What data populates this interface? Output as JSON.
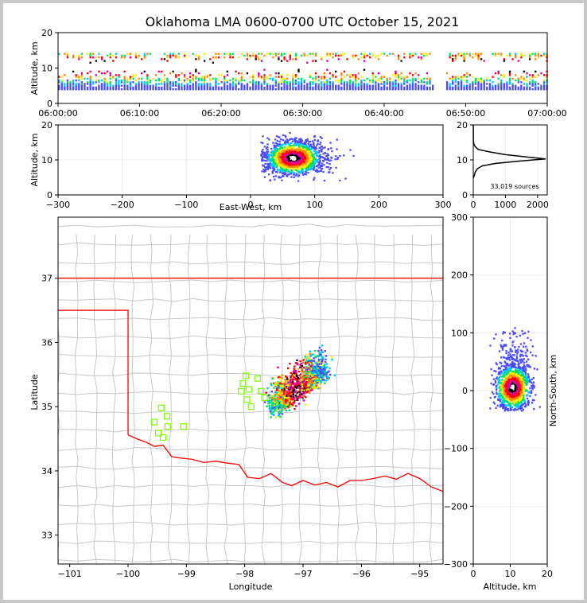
{
  "chart_data": {
    "title": "Oklahoma LMA 0600-0700 UTC October 15, 2021",
    "panels": [
      {
        "type": "scatter",
        "name": "time-altitude",
        "xlabel": "",
        "ylabel": "Altitude, km",
        "xlim": [
          "06:00:00",
          "07:00:00"
        ],
        "ylim": [
          0,
          20
        ],
        "x_ticks": [
          "06:00:00",
          "06:10:00",
          "06:20:00",
          "06:30:00",
          "06:40:00",
          "06:50:00",
          "07:00:00"
        ],
        "y_ticks": [
          "0",
          "10",
          "20"
        ],
        "gaps_minutes": [
          [
            46,
            47.3
          ]
        ],
        "altitude_band_km": [
          4,
          14
        ],
        "peak_altitude_km": 10.5
      },
      {
        "type": "scatter",
        "name": "east-west-altitude",
        "xlabel": "East-West, km",
        "ylabel": "Altitude, km",
        "xlim": [
          -300,
          300
        ],
        "ylim": [
          0,
          20
        ],
        "x_ticks": [
          "−300",
          "−200",
          "−100",
          "0",
          "100",
          "200",
          "300"
        ],
        "y_ticks": [
          "0",
          "10",
          "20"
        ],
        "cluster": {
          "x_range_km": [
            20,
            160
          ],
          "core_x_km": 65,
          "core_z_km": 10.5
        }
      },
      {
        "type": "line",
        "name": "altitude-histogram",
        "xlabel": "",
        "ylabel": "",
        "xlim": [
          0,
          2300
        ],
        "ylim": [
          0,
          20
        ],
        "x_ticks": [
          "0",
          "1000",
          "2000"
        ],
        "y_ticks": [
          "0",
          "10",
          "20"
        ],
        "annotation": "33,019 sources",
        "profile": [
          {
            "alt": 4.8,
            "count": 0
          },
          {
            "alt": 5.5,
            "count": 30
          },
          {
            "alt": 6.5,
            "count": 60
          },
          {
            "alt": 7.5,
            "count": 130
          },
          {
            "alt": 8.3,
            "count": 280
          },
          {
            "alt": 9.0,
            "count": 700
          },
          {
            "alt": 9.7,
            "count": 1500
          },
          {
            "alt": 10.3,
            "count": 2250
          },
          {
            "alt": 10.8,
            "count": 1700
          },
          {
            "alt": 11.5,
            "count": 1000
          },
          {
            "alt": 12.3,
            "count": 500
          },
          {
            "alt": 13.0,
            "count": 150
          },
          {
            "alt": 13.8,
            "count": 60
          },
          {
            "alt": 14.5,
            "count": 20
          },
          {
            "alt": 15.5,
            "count": 5
          },
          {
            "alt": 20.0,
            "count": 0
          }
        ]
      },
      {
        "type": "scatter",
        "name": "plan-view-map",
        "xlabel": "Longitude",
        "ylabel": "Latitude",
        "xlim": [
          -101.2,
          -94.6
        ],
        "ylim": [
          32.55,
          37.95
        ],
        "x_ticks": [
          "−101",
          "−100",
          "−99",
          "−98",
          "−97",
          "−96",
          "−95"
        ],
        "y_ticks": [
          "33",
          "34",
          "35",
          "36",
          "37"
        ],
        "stations": [
          {
            "lon": -99.43,
            "lat": 34.98
          },
          {
            "lon": -99.33,
            "lat": 34.85
          },
          {
            "lon": -99.55,
            "lat": 34.76
          },
          {
            "lon": -99.32,
            "lat": 34.69
          },
          {
            "lon": -99.05,
            "lat": 34.69
          },
          {
            "lon": -99.48,
            "lat": 34.59
          },
          {
            "lon": -99.4,
            "lat": 34.52
          },
          {
            "lon": -97.98,
            "lat": 35.48
          },
          {
            "lon": -97.78,
            "lat": 35.44
          },
          {
            "lon": -98.03,
            "lat": 35.36
          },
          {
            "lon": -97.93,
            "lat": 35.27
          },
          {
            "lon": -98.06,
            "lat": 35.24
          },
          {
            "lon": -97.72,
            "lat": 35.24
          },
          {
            "lon": -97.66,
            "lat": 35.14
          },
          {
            "lon": -97.96,
            "lat": 35.11
          },
          {
            "lon": -97.89,
            "lat": 35.0
          }
        ],
        "storm_axis": {
          "from": [
            -97.5,
            35.0
          ],
          "to": [
            -96.7,
            35.55
          ]
        },
        "border_color": "#ff0000",
        "county_color": "#c8c8c8",
        "station_color": "#7cfc00"
      },
      {
        "type": "scatter",
        "name": "altitude-north-south",
        "xlabel": "Altitude, km",
        "ylabel": "North-South, km",
        "xlim": [
          0,
          20
        ],
        "ylim": [
          -300,
          300
        ],
        "x_ticks": [
          "0",
          "10",
          "20"
        ],
        "y_ticks": [
          "−300",
          "−200",
          "−100",
          "0",
          "100",
          "200",
          "300"
        ],
        "cluster": {
          "y_range_km": [
            -35,
            110
          ],
          "core_y_km": 5,
          "core_alt_km": 10.5
        }
      }
    ],
    "colormap": [
      "#4a4aff",
      "#00c8ff",
      "#00e060",
      "#f0f000",
      "#ff8800",
      "#ff0000",
      "#e000a0",
      "#000000",
      "#ffffff"
    ]
  }
}
